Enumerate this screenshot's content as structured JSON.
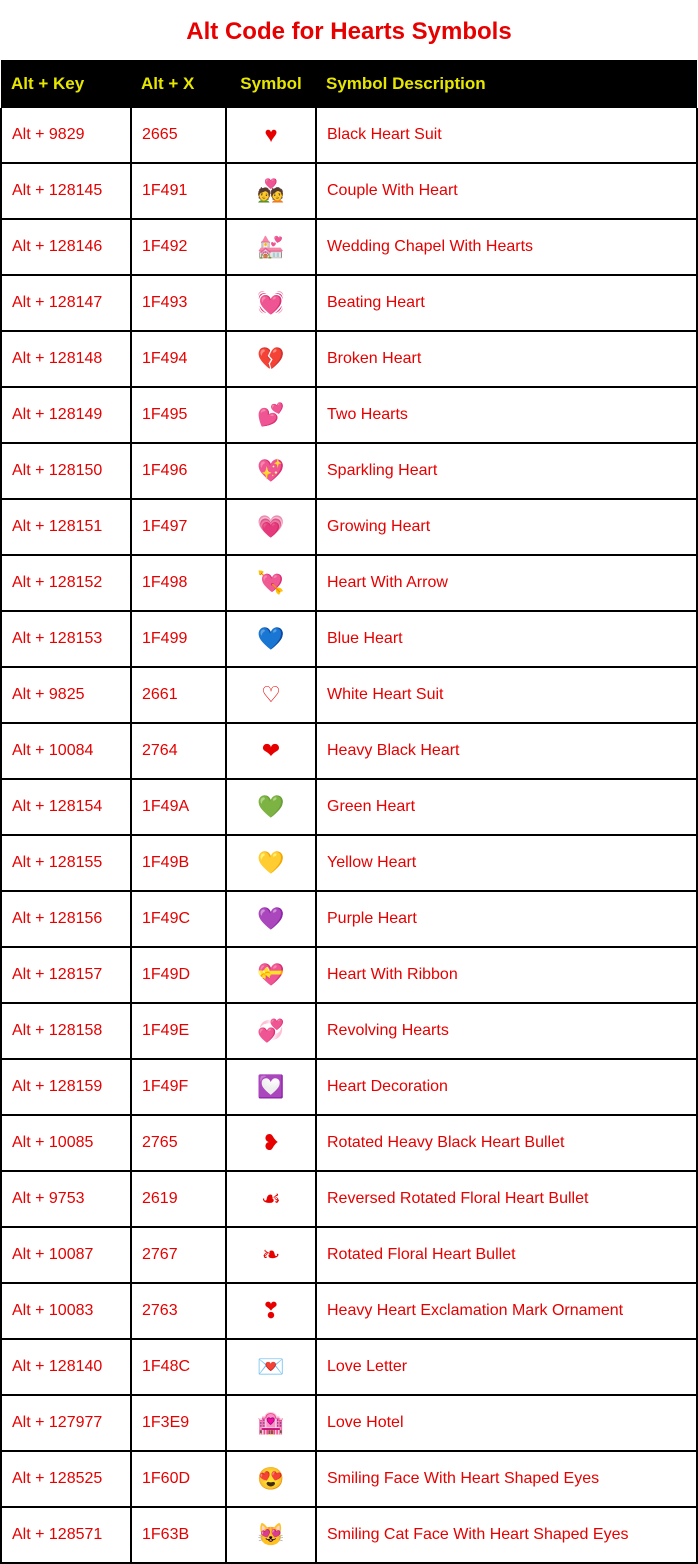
{
  "title": {
    "text": "Alt Code for Hearts Symbols",
    "color": "#e60000",
    "fontsize": 24
  },
  "table": {
    "header_bg": "#000000",
    "header_color": "#e6e600",
    "row_text_color": "#e60000",
    "border_color": "#000000",
    "columns": [
      {
        "label": "Alt + Key"
      },
      {
        "label": "Alt + X"
      },
      {
        "label": "Symbol"
      },
      {
        "label": "Symbol Description"
      }
    ],
    "rows": [
      {
        "altkey": "Alt + 9829",
        "altx": "2665",
        "symbol": "♥",
        "desc": "Black Heart Suit"
      },
      {
        "altkey": "Alt + 128145",
        "altx": "1F491",
        "symbol": "💑",
        "desc": "Couple With Heart"
      },
      {
        "altkey": "Alt + 128146",
        "altx": "1F492",
        "symbol": "💒",
        "desc": "Wedding Chapel With Hearts"
      },
      {
        "altkey": "Alt + 128147",
        "altx": "1F493",
        "symbol": "💓",
        "desc": "Beating Heart"
      },
      {
        "altkey": "Alt + 128148",
        "altx": "1F494",
        "symbol": "💔",
        "desc": "Broken Heart"
      },
      {
        "altkey": "Alt + 128149",
        "altx": "1F495",
        "symbol": "💕",
        "desc": "Two Hearts"
      },
      {
        "altkey": "Alt + 128150",
        "altx": "1F496",
        "symbol": "💖",
        "desc": "Sparkling Heart"
      },
      {
        "altkey": "Alt + 128151",
        "altx": "1F497",
        "symbol": "💗",
        "desc": "Growing Heart"
      },
      {
        "altkey": "Alt + 128152",
        "altx": "1F498",
        "symbol": "💘",
        "desc": "Heart With Arrow"
      },
      {
        "altkey": "Alt + 128153",
        "altx": "1F499",
        "symbol": "💙",
        "desc": "Blue Heart"
      },
      {
        "altkey": "Alt + 9825",
        "altx": "2661",
        "symbol": "♡",
        "desc": "White Heart Suit"
      },
      {
        "altkey": "Alt + 10084",
        "altx": "2764",
        "symbol": "❤",
        "desc": "Heavy Black Heart"
      },
      {
        "altkey": "Alt + 128154",
        "altx": "1F49A",
        "symbol": "💚",
        "desc": "Green Heart"
      },
      {
        "altkey": "Alt + 128155",
        "altx": "1F49B",
        "symbol": "💛",
        "desc": "Yellow Heart"
      },
      {
        "altkey": "Alt + 128156",
        "altx": "1F49C",
        "symbol": "💜",
        "desc": "Purple Heart"
      },
      {
        "altkey": "Alt + 128157",
        "altx": "1F49D",
        "symbol": "💝",
        "desc": "Heart With Ribbon"
      },
      {
        "altkey": "Alt + 128158",
        "altx": "1F49E",
        "symbol": "💞",
        "desc": "Revolving Hearts"
      },
      {
        "altkey": "Alt + 128159",
        "altx": "1F49F",
        "symbol": "💟",
        "desc": "Heart Decoration"
      },
      {
        "altkey": "Alt + 10085",
        "altx": "2765",
        "symbol": "❥",
        "desc": "Rotated Heavy Black Heart Bullet"
      },
      {
        "altkey": "Alt + 9753",
        "altx": "2619",
        "symbol": "☙",
        "desc": "Reversed Rotated Floral Heart Bullet"
      },
      {
        "altkey": "Alt + 10087",
        "altx": "2767",
        "symbol": "❧",
        "desc": "Rotated Floral Heart Bullet"
      },
      {
        "altkey": "Alt + 10083",
        "altx": "2763",
        "symbol": "❣",
        "desc": "Heavy Heart Exclamation Mark Ornament"
      },
      {
        "altkey": "Alt + 128140",
        "altx": "1F48C",
        "symbol": "💌",
        "desc": "Love Letter"
      },
      {
        "altkey": "Alt + 127977",
        "altx": "1F3E9",
        "symbol": "🏩",
        "desc": "Love Hotel"
      },
      {
        "altkey": "Alt + 128525",
        "altx": "1F60D",
        "symbol": "😍",
        "desc": "Smiling Face With Heart Shaped Eyes"
      },
      {
        "altkey": "Alt + 128571",
        "altx": "1F63B",
        "symbol": "😻",
        "desc": "Smiling Cat Face With Heart Shaped Eyes"
      }
    ]
  }
}
